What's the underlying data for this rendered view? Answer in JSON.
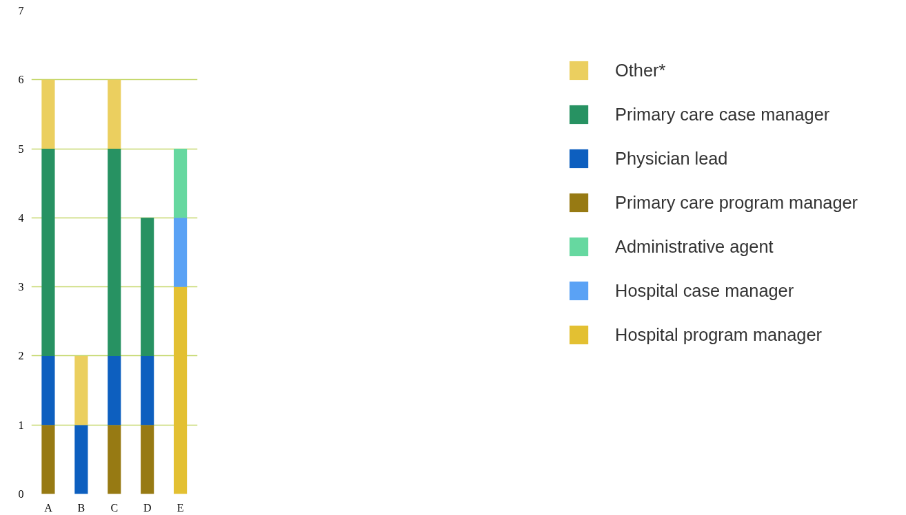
{
  "chart_data": {
    "type": "bar",
    "stacked": true,
    "categories": [
      "A",
      "B",
      "C",
      "D",
      "E"
    ],
    "series": [
      {
        "name": "Hospital program manager",
        "color": "#e3c032",
        "values": [
          null,
          null,
          null,
          null,
          3
        ]
      },
      {
        "name": "Hospital case manager",
        "color": "#5aa2f5",
        "values": [
          null,
          null,
          null,
          null,
          1
        ]
      },
      {
        "name": "Administrative agent",
        "color": "#66d8a0",
        "values": [
          null,
          null,
          null,
          null,
          1
        ]
      },
      {
        "name": "Primary care program manager",
        "color": "#977a13",
        "values": [
          1,
          null,
          1,
          1,
          null
        ]
      },
      {
        "name": "Physician lead",
        "color": "#0d5fbf",
        "values": [
          1,
          1,
          1,
          1,
          null
        ]
      },
      {
        "name": "Primary care case manager",
        "color": "#279262",
        "values": [
          3,
          null,
          3,
          2,
          null
        ]
      },
      {
        "name": "Other*",
        "color": "#ebcf5f",
        "values": [
          1,
          1,
          1,
          null,
          null
        ]
      }
    ],
    "ylim": [
      0,
      7
    ],
    "yticks": [
      0,
      1,
      2,
      3,
      4,
      5,
      6,
      7
    ],
    "grid": "y",
    "legend": "right"
  }
}
